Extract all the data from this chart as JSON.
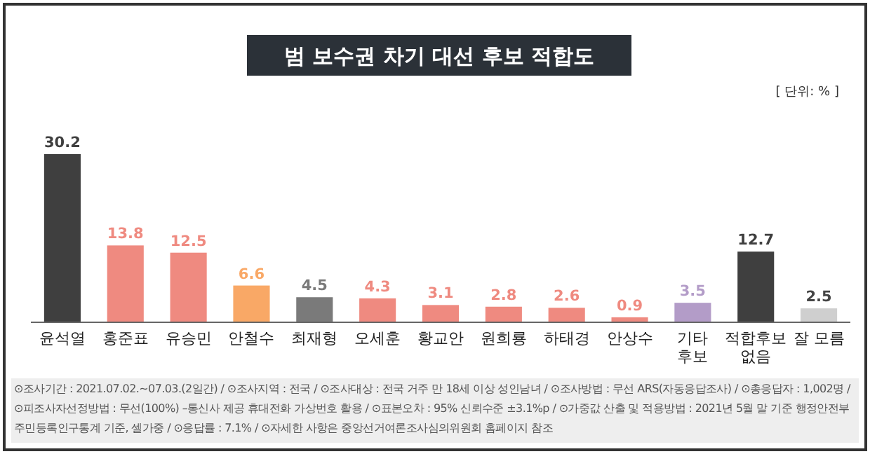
{
  "chart_data": {
    "type": "bar",
    "title": "범 보수권 차기 대선 후보 적합도",
    "categories": [
      "윤석열",
      "홍준표",
      "유승민",
      "안철수",
      "최재형",
      "오세훈",
      "황교안",
      "원희룡",
      "하태경",
      "안상수",
      "기타 후보",
      "적합후보 없음",
      "잘 모름"
    ],
    "values": [
      30.2,
      13.8,
      12.5,
      6.6,
      4.5,
      4.3,
      3.1,
      2.8,
      2.6,
      0.9,
      3.5,
      12.7,
      2.5
    ],
    "colors": [
      "#3f3f3f",
      "#ef8a80",
      "#ef8a80",
      "#f9a866",
      "#7a7a7a",
      "#ef8a80",
      "#ef8a80",
      "#ef8a80",
      "#ef8a80",
      "#ef8a80",
      "#b39cc8",
      "#3f3f3f",
      "#cfcfcf"
    ],
    "data_labels": true,
    "annotations": [
      "[ 단위: % ]",
      "⊙조사기간 : 2021.07.02.~07.03.(2일간) / ⊙조사지역 : 전국 / ⊙조사대상 : 전국 거주 만 18세 이상 성인남녀 / ⊙조사방법 : 무선 ARS(자동응답조사) / ⊙총응답자 : 1,002명 /",
      "⊙피조사자선정방법 : 무선(100%) –통신사 제공 휴대전화 가상번호 활용 / ⊙표본오차 : 95% 신뢰수준 ±3.1%p / ⊙가중값 산출 및 적용방법 : 2021년 5월 말 기준 행정안전부 주민등록인구통계 기준, 셀가중 / ⊙응답률 : 7.1% / ⊙자세한 사항은 중앙선거여론조사심의위원회 홈페이지 참조"
    ]
  }
}
